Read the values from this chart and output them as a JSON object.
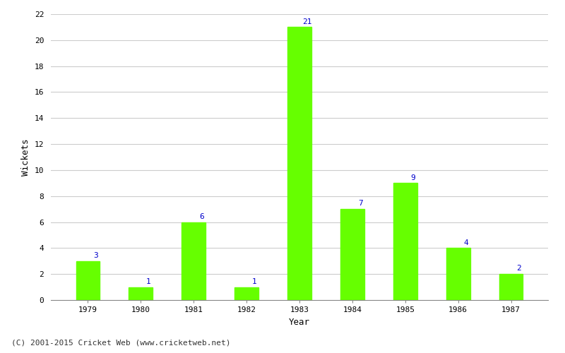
{
  "years": [
    "1979",
    "1980",
    "1981",
    "1982",
    "1983",
    "1984",
    "1985",
    "1986",
    "1987"
  ],
  "wickets": [
    3,
    1,
    6,
    1,
    21,
    7,
    9,
    4,
    2
  ],
  "bar_color": "#66ff00",
  "bar_edge_color": "#66ff00",
  "label_color": "#0000cc",
  "label_fontsize": 8,
  "xlabel": "Year",
  "ylabel": "Wickets",
  "ylim": [
    0,
    22
  ],
  "yticks": [
    0,
    2,
    4,
    6,
    8,
    10,
    12,
    14,
    16,
    18,
    20,
    22
  ],
  "background_color": "#ffffff",
  "grid_color": "#cccccc",
  "footer_text": "(C) 2001-2015 Cricket Web (www.cricketweb.net)",
  "footer_fontsize": 8,
  "footer_color": "#333333",
  "axis_label_fontsize": 9,
  "tick_fontsize": 8,
  "bar_width": 0.45
}
